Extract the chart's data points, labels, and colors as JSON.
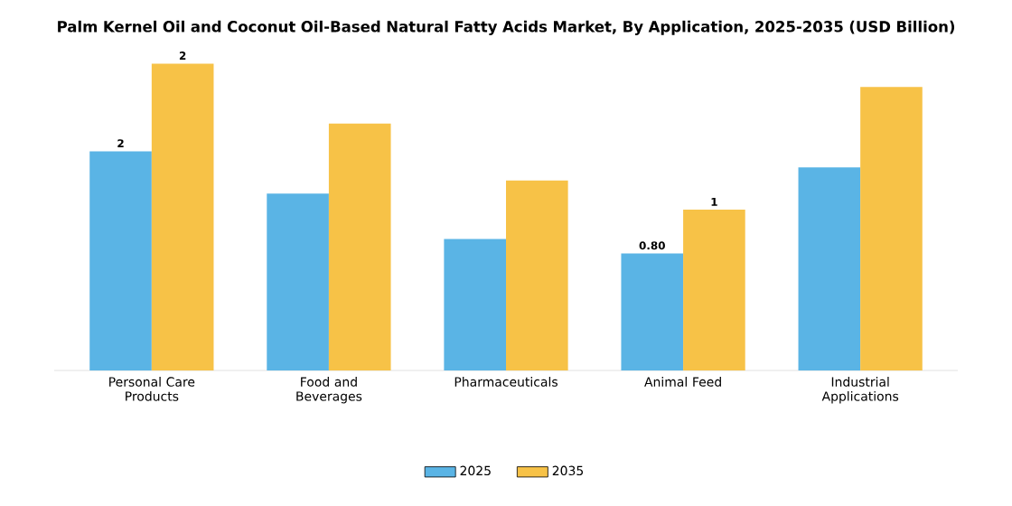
{
  "chart_data": {
    "type": "bar",
    "title": "Palm Kernel Oil and Coconut Oil-Based Natural Fatty Acids Market, By Application, 2025-2035 (USD Billion)",
    "categories": [
      "Personal Care Products",
      "Food and Beverages",
      "Pharmaceuticals",
      "Animal Feed",
      "Industrial Applications"
    ],
    "series": [
      {
        "name": "2025",
        "color": "#5ab4e5",
        "values": [
          1.5,
          1.21,
          0.9,
          0.8,
          1.39
        ],
        "value_labels": [
          "2",
          null,
          null,
          "0.80",
          null
        ]
      },
      {
        "name": "2035",
        "color": "#f7c247",
        "values": [
          2.1,
          1.69,
          1.3,
          1.1,
          1.94
        ],
        "value_labels": [
          "2",
          null,
          null,
          "1",
          null
        ]
      }
    ],
    "legend": "bottom",
    "tick_labels": "x"
  }
}
